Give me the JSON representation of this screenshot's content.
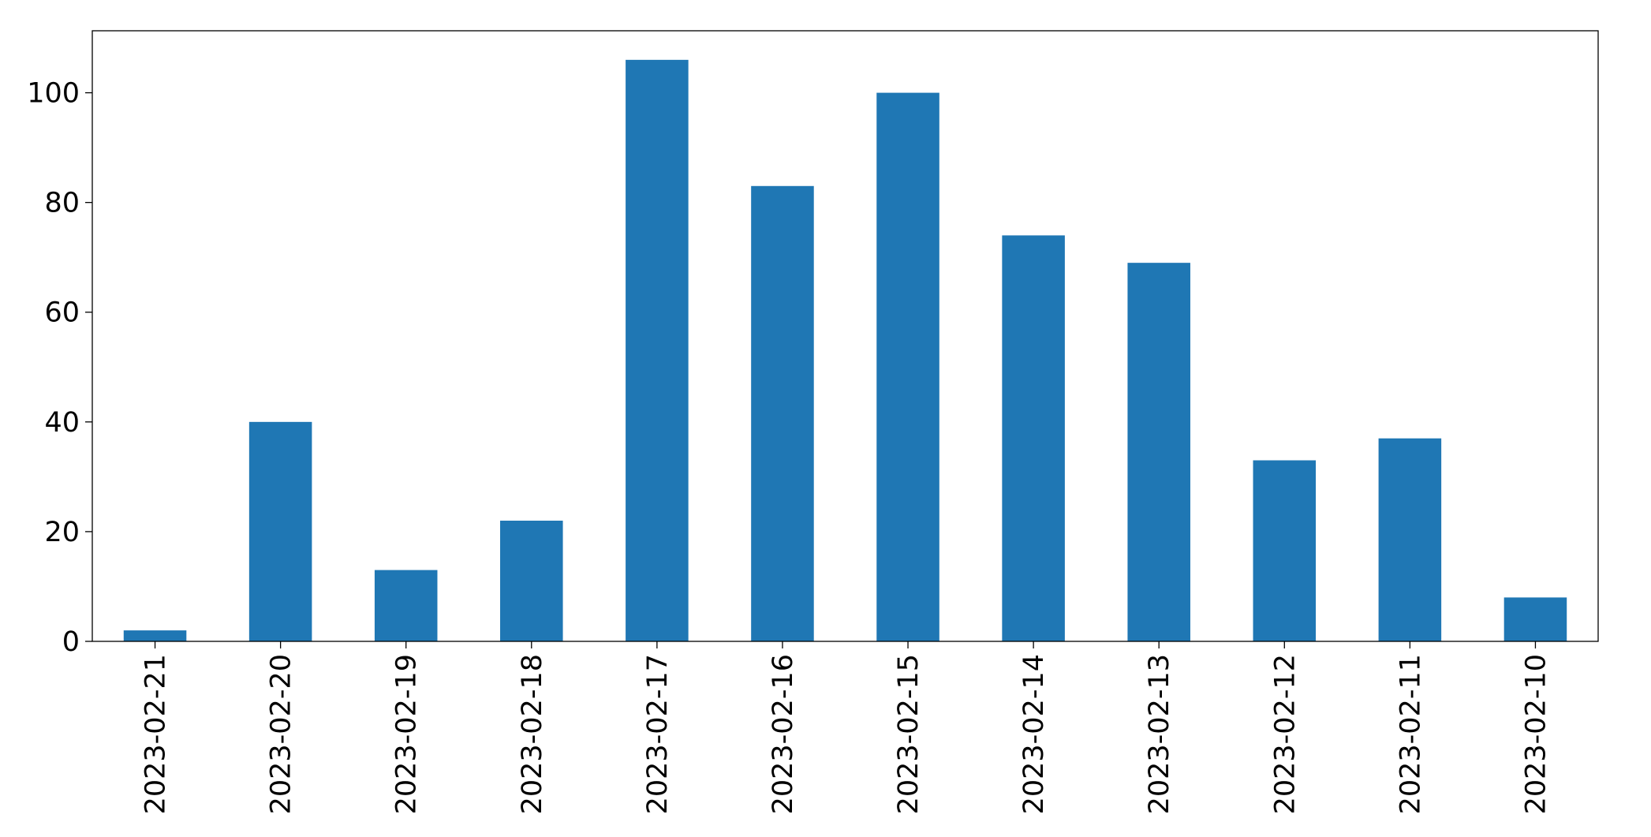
{
  "chart_data": {
    "type": "bar",
    "categories": [
      "2023-02-21",
      "2023-02-20",
      "2023-02-19",
      "2023-02-18",
      "2023-02-17",
      "2023-02-16",
      "2023-02-15",
      "2023-02-14",
      "2023-02-13",
      "2023-02-12",
      "2023-02-11",
      "2023-02-10"
    ],
    "values": [
      2,
      40,
      13,
      22,
      106,
      83,
      100,
      74,
      69,
      33,
      37,
      8
    ],
    "color": "#1f77b4",
    "ylim": [
      0,
      111.3
    ],
    "yticks": [
      0,
      20,
      40,
      60,
      80,
      100
    ],
    "grid": false
  }
}
